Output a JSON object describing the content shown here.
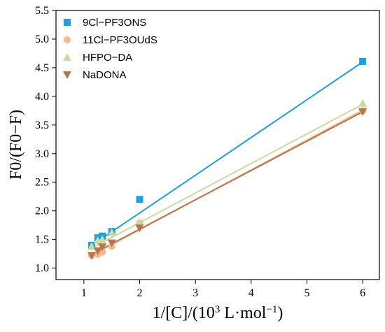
{
  "chart_data": {
    "type": "scatter",
    "xlabel": "1/[C]/(10",
    "xlabel_sup_3": "3",
    "xlabel_unit": " L·mol",
    "xlabel_sup_neg1": "−1",
    "xlabel_close": ")",
    "ylabel": "F0/(F0−F)",
    "xlim": [
      0.5,
      6.3
    ],
    "ylim": [
      0.8,
      5.5
    ],
    "xticks": [
      1,
      2,
      3,
      4,
      5,
      6
    ],
    "yticks": [
      1.0,
      1.5,
      2.0,
      2.5,
      3.0,
      3.5,
      4.0,
      4.5,
      5.0,
      5.5
    ],
    "xtick_labels": [
      "1",
      "2",
      "3",
      "4",
      "5",
      "6"
    ],
    "ytick_labels": [
      "1.0",
      "1.5",
      "2.0",
      "2.5",
      "3.0",
      "3.5",
      "4.0",
      "4.5",
      "5.0",
      "5.5"
    ],
    "legend_position": "top-left",
    "series": [
      {
        "name": "9Cl−PF3ONS",
        "marker": "square",
        "color": "#1f9ee0",
        "x": [
          1.14,
          1.25,
          1.33,
          1.5,
          2.0,
          6.0
        ],
        "y": [
          1.4,
          1.53,
          1.56,
          1.64,
          2.2,
          4.61
        ],
        "fit": [
          [
            1.1,
            1.37
          ],
          [
            6.0,
            4.6
          ]
        ]
      },
      {
        "name": "11Cl−PF3OUdS",
        "marker": "circle",
        "color": "#f2b98c",
        "x": [
          1.14,
          1.25,
          1.33,
          1.5,
          2.0,
          6.0
        ],
        "y": [
          1.22,
          1.24,
          1.28,
          1.38,
          1.79,
          3.75
        ],
        "fit": [
          [
            1.1,
            1.2
          ],
          [
            6.0,
            3.76
          ]
        ]
      },
      {
        "name": "HFPO−DA",
        "marker": "triangle-up",
        "color": "#c6dca2",
        "x": [
          1.14,
          1.25,
          1.33,
          1.5,
          2.0,
          6.0
        ],
        "y": [
          1.38,
          1.48,
          1.5,
          1.62,
          1.78,
          3.88
        ],
        "fit": [
          [
            1.1,
            1.33
          ],
          [
            6.0,
            3.86
          ]
        ]
      },
      {
        "name": "NaDONA",
        "marker": "triangle-down",
        "color": "#b8744a",
        "x": [
          1.14,
          1.25,
          1.33,
          1.5,
          2.0,
          6.0
        ],
        "y": [
          1.22,
          1.3,
          1.37,
          1.44,
          1.7,
          3.73
        ],
        "fit": [
          [
            1.1,
            1.22
          ],
          [
            6.0,
            3.73
          ]
        ]
      }
    ]
  }
}
